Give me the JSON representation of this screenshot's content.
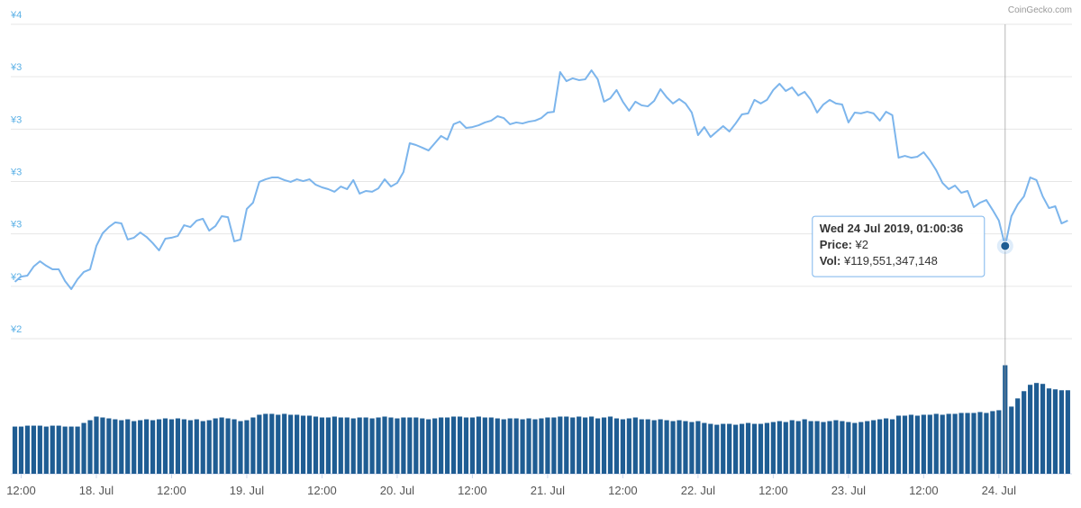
{
  "chart_data": {
    "type": "line",
    "credit": "CoinGecko.com",
    "x": [
      "2019-07-17T11:00",
      "2019-07-17T12:00",
      "2019-07-17T13:00",
      "2019-07-17T14:00",
      "2019-07-17T15:00",
      "2019-07-17T16:00",
      "2019-07-17T17:00",
      "2019-07-17T18:00",
      "2019-07-17T19:00",
      "2019-07-17T20:00",
      "2019-07-17T21:00",
      "2019-07-17T22:00",
      "2019-07-17T23:00",
      "2019-07-18T00:00",
      "2019-07-18T01:00",
      "2019-07-18T02:00",
      "2019-07-18T03:00",
      "2019-07-18T04:00",
      "2019-07-18T05:00",
      "2019-07-18T06:00",
      "2019-07-18T07:00",
      "2019-07-18T08:00",
      "2019-07-18T09:00",
      "2019-07-18T10:00",
      "2019-07-18T11:00",
      "2019-07-18T12:00",
      "2019-07-18T13:00",
      "2019-07-18T14:00",
      "2019-07-18T15:00",
      "2019-07-18T16:00",
      "2019-07-18T17:00",
      "2019-07-18T18:00",
      "2019-07-18T19:00",
      "2019-07-18T20:00",
      "2019-07-18T21:00",
      "2019-07-18T22:00",
      "2019-07-18T23:00",
      "2019-07-19T00:00",
      "2019-07-19T01:00",
      "2019-07-19T02:00",
      "2019-07-19T03:00",
      "2019-07-19T04:00",
      "2019-07-19T05:00",
      "2019-07-19T06:00",
      "2019-07-19T07:00",
      "2019-07-19T08:00",
      "2019-07-19T09:00",
      "2019-07-19T10:00",
      "2019-07-19T11:00",
      "2019-07-19T12:00",
      "2019-07-19T13:00",
      "2019-07-19T14:00",
      "2019-07-19T15:00",
      "2019-07-19T16:00",
      "2019-07-19T17:00",
      "2019-07-19T18:00",
      "2019-07-19T19:00",
      "2019-07-19T20:00",
      "2019-07-19T21:00",
      "2019-07-19T22:00",
      "2019-07-19T23:00",
      "2019-07-20T00:00",
      "2019-07-20T01:00",
      "2019-07-20T02:00",
      "2019-07-20T03:00",
      "2019-07-20T04:00",
      "2019-07-20T05:00",
      "2019-07-20T06:00",
      "2019-07-20T07:00",
      "2019-07-20T08:00",
      "2019-07-20T09:00",
      "2019-07-20T10:00",
      "2019-07-20T11:00",
      "2019-07-20T12:00",
      "2019-07-20T13:00",
      "2019-07-20T14:00",
      "2019-07-20T15:00",
      "2019-07-20T16:00",
      "2019-07-20T17:00",
      "2019-07-20T18:00",
      "2019-07-20T19:00",
      "2019-07-20T20:00",
      "2019-07-20T21:00",
      "2019-07-20T22:00",
      "2019-07-20T23:00",
      "2019-07-21T00:00",
      "2019-07-21T01:00",
      "2019-07-21T02:00",
      "2019-07-21T03:00",
      "2019-07-21T04:00",
      "2019-07-21T05:00",
      "2019-07-21T06:00",
      "2019-07-21T07:00",
      "2019-07-21T08:00",
      "2019-07-21T09:00",
      "2019-07-21T10:00",
      "2019-07-21T11:00",
      "2019-07-21T12:00",
      "2019-07-21T13:00",
      "2019-07-21T14:00",
      "2019-07-21T15:00",
      "2019-07-21T16:00",
      "2019-07-21T17:00",
      "2019-07-21T18:00",
      "2019-07-21T19:00",
      "2019-07-21T20:00",
      "2019-07-21T21:00",
      "2019-07-21T22:00",
      "2019-07-21T23:00",
      "2019-07-22T00:00",
      "2019-07-22T01:00",
      "2019-07-22T02:00",
      "2019-07-22T03:00",
      "2019-07-22T04:00",
      "2019-07-22T05:00",
      "2019-07-22T06:00",
      "2019-07-22T07:00",
      "2019-07-22T08:00",
      "2019-07-22T09:00",
      "2019-07-22T10:00",
      "2019-07-22T11:00",
      "2019-07-22T12:00",
      "2019-07-22T13:00",
      "2019-07-22T14:00",
      "2019-07-22T15:00",
      "2019-07-22T16:00",
      "2019-07-22T17:00",
      "2019-07-22T18:00",
      "2019-07-22T19:00",
      "2019-07-22T20:00",
      "2019-07-22T21:00",
      "2019-07-22T22:00",
      "2019-07-22T23:00",
      "2019-07-23T00:00",
      "2019-07-23T01:00",
      "2019-07-23T02:00",
      "2019-07-23T03:00",
      "2019-07-23T04:00",
      "2019-07-23T05:00",
      "2019-07-23T06:00",
      "2019-07-23T07:00",
      "2019-07-23T08:00",
      "2019-07-23T09:00",
      "2019-07-23T10:00",
      "2019-07-23T11:00",
      "2019-07-23T12:00",
      "2019-07-23T13:00",
      "2019-07-23T14:00",
      "2019-07-23T15:00",
      "2019-07-23T16:00",
      "2019-07-23T17:00",
      "2019-07-23T18:00",
      "2019-07-23T19:00",
      "2019-07-23T20:00",
      "2019-07-23T21:00",
      "2019-07-23T22:00",
      "2019-07-23T23:00",
      "2019-07-24T00:00",
      "2019-07-24T01:00",
      "2019-07-24T02:00",
      "2019-07-24T03:00",
      "2019-07-24T04:00",
      "2019-07-24T05:00",
      "2019-07-24T06:00",
      "2019-07-24T07:00",
      "2019-07-24T08:00",
      "2019-07-24T09:00",
      "2019-07-24T10:00",
      "2019-07-24T11:00"
    ],
    "series": [
      {
        "name": "Price:",
        "color": "#7cb5ec",
        "values": [
          2.282,
          2.308,
          2.313,
          2.358,
          2.384,
          2.362,
          2.344,
          2.344,
          2.286,
          2.246,
          2.295,
          2.331,
          2.344,
          2.46,
          2.523,
          2.554,
          2.577,
          2.572,
          2.492,
          2.501,
          2.527,
          2.505,
          2.474,
          2.438,
          2.496,
          2.501,
          2.51,
          2.563,
          2.554,
          2.586,
          2.595,
          2.536,
          2.559,
          2.608,
          2.603,
          2.483,
          2.492,
          2.644,
          2.675,
          2.778,
          2.791,
          2.8,
          2.8,
          2.787,
          2.778,
          2.791,
          2.782,
          2.791,
          2.764,
          2.751,
          2.742,
          2.729,
          2.755,
          2.742,
          2.787,
          2.72,
          2.733,
          2.729,
          2.746,
          2.791,
          2.755,
          2.773,
          2.827,
          2.97,
          2.961,
          2.948,
          2.934,
          2.97,
          3.006,
          2.988,
          3.064,
          3.077,
          3.046,
          3.05,
          3.059,
          3.073,
          3.082,
          3.104,
          3.095,
          3.064,
          3.073,
          3.068,
          3.077,
          3.082,
          3.095,
          3.122,
          3.126,
          3.323,
          3.278,
          3.292,
          3.283,
          3.287,
          3.332,
          3.287,
          3.176,
          3.193,
          3.234,
          3.176,
          3.131,
          3.176,
          3.158,
          3.153,
          3.18,
          3.238,
          3.198,
          3.167,
          3.189,
          3.167,
          3.122,
          3.01,
          3.05,
          3.001,
          3.028,
          3.055,
          3.028,
          3.068,
          3.113,
          3.118,
          3.185,
          3.167,
          3.185,
          3.234,
          3.265,
          3.229,
          3.247,
          3.207,
          3.225,
          3.185,
          3.122,
          3.162,
          3.185,
          3.167,
          3.162,
          3.073,
          3.122,
          3.118,
          3.126,
          3.118,
          3.082,
          3.126,
          3.109,
          2.898,
          2.907,
          2.898,
          2.903,
          2.925,
          2.885,
          2.836,
          2.773,
          2.742,
          2.76,
          2.724,
          2.733,
          2.653,
          2.675,
          2.688,
          2.639,
          2.586,
          2.46,
          2.608,
          2.666,
          2.706,
          2.8,
          2.787,
          2.706,
          2.648,
          2.657,
          2.572,
          2.586
        ]
      },
      {
        "name": "Vol:",
        "color": "#1f5d93",
        "axis": "y2",
        "values": [
          52000000000,
          52000000000,
          53000000000,
          53000000000,
          53000000000,
          52000000000,
          53000000000,
          53000000000,
          52000000000,
          52000000000,
          52000000000,
          56000000000,
          59000000000,
          63000000000,
          62000000000,
          61000000000,
          60000000000,
          59000000000,
          60000000000,
          58000000000,
          59000000000,
          60000000000,
          59000000000,
          60000000000,
          61000000000,
          60000000000,
          61000000000,
          60000000000,
          59000000000,
          60000000000,
          58000000000,
          59000000000,
          61000000000,
          62000000000,
          61000000000,
          60000000000,
          58000000000,
          59000000000,
          62000000000,
          65000000000,
          66000000000,
          66000000000,
          65000000000,
          66000000000,
          65000000000,
          65000000000,
          64000000000,
          64000000000,
          63000000000,
          62000000000,
          62000000000,
          63000000000,
          62000000000,
          62000000000,
          61000000000,
          62000000000,
          62000000000,
          61000000000,
          62000000000,
          63000000000,
          62000000000,
          61000000000,
          62000000000,
          62000000000,
          62000000000,
          61000000000,
          60000000000,
          61000000000,
          62000000000,
          62000000000,
          63000000000,
          63000000000,
          62000000000,
          62000000000,
          63000000000,
          62000000000,
          62000000000,
          61000000000,
          60000000000,
          61000000000,
          61000000000,
          60000000000,
          61000000000,
          60000000000,
          61000000000,
          62000000000,
          62000000000,
          63000000000,
          63000000000,
          62000000000,
          63000000000,
          62000000000,
          63000000000,
          61000000000,
          62000000000,
          63000000000,
          61000000000,
          60000000000,
          61000000000,
          62000000000,
          60000000000,
          60000000000,
          59000000000,
          60000000000,
          59000000000,
          58000000000,
          59000000000,
          58000000000,
          57000000000,
          58000000000,
          56000000000,
          55000000000,
          54000000000,
          55000000000,
          55000000000,
          54000000000,
          55000000000,
          56000000000,
          55000000000,
          55000000000,
          56000000000,
          57000000000,
          58000000000,
          57000000000,
          59000000000,
          58000000000,
          60000000000,
          58000000000,
          58000000000,
          57000000000,
          58000000000,
          59000000000,
          58000000000,
          57000000000,
          56000000000,
          57000000000,
          58000000000,
          59000000000,
          60000000000,
          61000000000,
          60000000000,
          64000000000,
          64000000000,
          65000000000,
          64000000000,
          65000000000,
          65000000000,
          66000000000,
          65000000000,
          66000000000,
          66000000000,
          67000000000,
          67000000000,
          67000000000,
          68000000000,
          67000000000,
          69000000000,
          70000000000,
          119551347148,
          74000000000,
          83000000000,
          91000000000,
          98000000000,
          100000000000,
          99000000000,
          94000000000,
          93000000000,
          92000000000,
          92000000000
        ]
      }
    ],
    "xlim": [
      "2019-07-17T10:21",
      "2019-07-24T11:40"
    ],
    "xticks": [
      {
        "value": "2019-07-17T12:00",
        "label": "12:00"
      },
      {
        "value": "2019-07-18T00:00",
        "label": "18. Jul"
      },
      {
        "value": "2019-07-18T12:00",
        "label": "12:00"
      },
      {
        "value": "2019-07-19T00:00",
        "label": "19. Jul"
      },
      {
        "value": "2019-07-19T12:00",
        "label": "12:00"
      },
      {
        "value": "2019-07-20T00:00",
        "label": "20. Jul"
      },
      {
        "value": "2019-07-20T12:00",
        "label": "12:00"
      },
      {
        "value": "2019-07-21T00:00",
        "label": "21. Jul"
      },
      {
        "value": "2019-07-21T12:00",
        "label": "12:00"
      },
      {
        "value": "2019-07-22T00:00",
        "label": "22. Jul"
      },
      {
        "value": "2019-07-22T12:00",
        "label": "12:00"
      },
      {
        "value": "2019-07-23T00:00",
        "label": "23. Jul"
      },
      {
        "value": "2019-07-23T12:00",
        "label": "12:00"
      },
      {
        "value": "2019-07-24T00:00",
        "label": "24. Jul"
      }
    ],
    "ylim": [
      2,
      3.56
    ],
    "yticks": [
      {
        "value": 2,
        "label": "¥2"
      },
      {
        "value": 2.26,
        "label": "¥2"
      },
      {
        "value": 2.52,
        "label": "¥3"
      },
      {
        "value": 2.78,
        "label": "¥3"
      },
      {
        "value": 3.04,
        "label": "¥3"
      },
      {
        "value": 3.3,
        "label": "¥3"
      },
      {
        "value": 3.56,
        "label": "¥4"
      }
    ],
    "y2lim": [
      0,
      125000000000
    ],
    "grid": true,
    "tooltip": {
      "x": "2019-07-24T01:00",
      "title": "Wed 24 Jul 2019, 01:00:36",
      "price": "¥2",
      "volume": "¥119,551,347,148"
    }
  }
}
